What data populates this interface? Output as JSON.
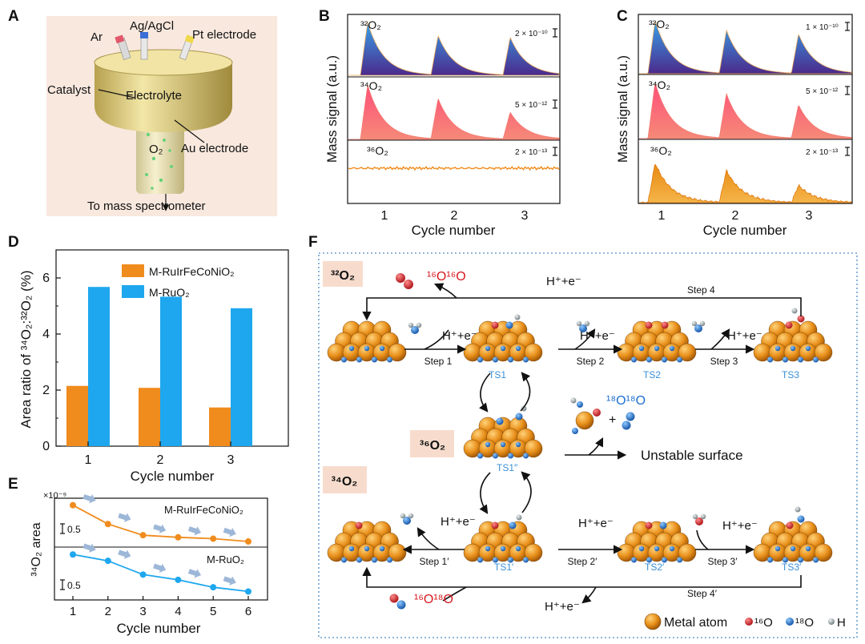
{
  "colors": {
    "orange": "#f08c1e",
    "blue": "#1ea7ee",
    "pink": "#f25a7a",
    "purple": "#4b2a8c",
    "slab": "#e88f1a",
    "o16": "#d71920",
    "o18": "#1c6fd1",
    "h": "#9aa5a8",
    "ts": "#3a8fd6"
  },
  "panelA": {
    "letter": "A",
    "labels": {
      "ar": "Ar",
      "ref": "Ag/AgCl",
      "pt": "Pt electrode",
      "catalyst": "Catalyst",
      "electrolyte": "Electrolyte",
      "o2": "O₂",
      "au": "Au electrode",
      "to_ms": "To mass spectrometer"
    }
  },
  "panelB": {
    "letter": "B",
    "ylabel": "Mass signal (a.u.)",
    "xlabel": "Cycle number",
    "ticks": [
      "1",
      "2",
      "3"
    ],
    "traces": [
      {
        "label": "³²O₂",
        "scale": "2 × 10⁻¹⁰",
        "peaks": [
          1,
          0.75,
          0.72
        ]
      },
      {
        "label": "³⁴O₂",
        "scale": "5 × 10⁻¹²",
        "peaks": [
          1,
          0.75,
          0.5
        ]
      },
      {
        "label": "³⁶O₂",
        "scale": "2 × 10⁻¹³",
        "peaks": [
          0,
          0,
          0
        ]
      }
    ]
  },
  "panelC": {
    "letter": "C",
    "ylabel": "Mass signal (a.u.)",
    "xlabel": "Cycle number",
    "ticks": [
      "1",
      "2",
      "3"
    ],
    "traces": [
      {
        "label": "³²O₂",
        "scale": "1 × 10⁻¹⁰",
        "peaks": [
          1,
          0.82,
          0.75
        ]
      },
      {
        "label": "³⁴O₂",
        "scale": "5 × 10⁻¹²",
        "peaks": [
          1,
          0.8,
          0.6
        ]
      },
      {
        "label": "³⁶O₂",
        "scale": "2 × 10⁻¹³",
        "peaks": [
          0.8,
          0.65,
          0.35
        ]
      }
    ]
  },
  "chart_data": [
    {
      "type": "bar",
      "panel": "D",
      "title": "",
      "xlabel": "Cycle number",
      "ylabel": "Area ratio of ³⁴O₂:³²O₂ (%)",
      "categories": [
        "1",
        "2",
        "3"
      ],
      "series": [
        {
          "name": "M-RuIrFeCoNiO₂",
          "color": "#f08c1e",
          "values": [
            2.15,
            2.08,
            1.38
          ]
        },
        {
          "name": "M-RuO₂",
          "color": "#1ea7ee",
          "values": [
            5.68,
            5.33,
            4.92
          ]
        }
      ],
      "ylim": [
        0,
        7
      ],
      "yticks": [
        "0",
        "2",
        "4",
        "6"
      ],
      "legend": "top-left"
    },
    {
      "type": "line",
      "panel": "E",
      "title": "",
      "xlabel": "Cycle number",
      "ylabel": "³⁴O₂ area",
      "axis_multiplier": "×10⁻⁹",
      "scale_bar": "0.5",
      "x": [
        1,
        2,
        3,
        4,
        5,
        6
      ],
      "xticks": [
        "1",
        "2",
        "3",
        "4",
        "5",
        "6"
      ],
      "series": [
        {
          "name": "M-RuIrFeCoNiO₂",
          "color": "#f08c1e",
          "values": [
            2.05,
            1.78,
            1.62,
            1.59,
            1.57,
            1.53
          ]
        },
        {
          "name": "M-RuO₂",
          "color": "#1ea7ee",
          "values": [
            0.98,
            0.92,
            0.79,
            0.74,
            0.67,
            0.63
          ]
        }
      ],
      "ylim_top": [
        1.45,
        2.15
      ],
      "ylim_bottom": [
        0.55,
        1.05
      ]
    }
  ],
  "panelF": {
    "letter": "F",
    "o32": "³²O₂",
    "o34": "³⁴O₂",
    "o36": "³⁶O₂",
    "prod16": "¹⁶O¹⁶O",
    "prod18": "¹⁸O¹⁸O",
    "prod1618": "¹⁶O¹⁸O",
    "he": "H⁺+e⁻",
    "plus": "+",
    "steps": [
      "Step 1",
      "Step 2",
      "Step 3",
      "Step 4",
      "Step 1′",
      "Step 2′",
      "Step 3′",
      "Step 4′"
    ],
    "ts": [
      "TS1",
      "TS2",
      "TS3",
      "TS1″",
      "TS1′",
      "TS2′",
      "TS3′"
    ],
    "unstable": "Unstable surface",
    "legend": {
      "metal": "Metal atom",
      "o16": "¹⁶O",
      "o18": "¹⁸O",
      "h": "H"
    }
  }
}
